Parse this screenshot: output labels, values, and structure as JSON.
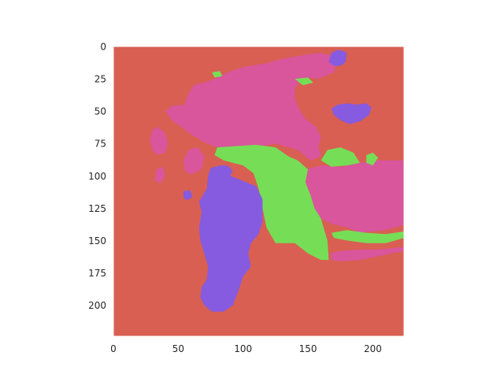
{
  "chart_data": {
    "type": "heatmap",
    "title": "",
    "xlabel": "",
    "ylabel": "",
    "xlim": [
      0,
      224
    ],
    "ylim": [
      224,
      0
    ],
    "grid": false,
    "xticks": [
      0,
      50,
      100,
      150,
      200
    ],
    "yticks": [
      0,
      25,
      50,
      75,
      100,
      125,
      150,
      175,
      200
    ],
    "classes": [
      {
        "id": 0,
        "color": "#d95f52"
      },
      {
        "id": 1,
        "color": "#d9559c"
      },
      {
        "id": 2,
        "color": "#76de56"
      },
      {
        "id": 3,
        "color": "#865be0"
      }
    ],
    "regions": [
      {
        "class": 1,
        "points": [
          [
            55,
            45
          ],
          [
            57,
            38
          ],
          [
            62,
            30
          ],
          [
            76,
            26
          ],
          [
            88,
            20
          ],
          [
            100,
            16
          ],
          [
            118,
            13
          ],
          [
            128,
            10
          ],
          [
            150,
            6
          ],
          [
            160,
            5
          ],
          [
            168,
            7
          ],
          [
            172,
            12
          ],
          [
            170,
            20
          ],
          [
            158,
            25
          ],
          [
            150,
            24
          ],
          [
            143,
            28
          ],
          [
            140,
            32
          ],
          [
            140,
            40
          ],
          [
            143,
            48
          ],
          [
            148,
            56
          ],
          [
            156,
            62
          ],
          [
            160,
            70
          ],
          [
            158,
            78
          ],
          [
            160,
            85
          ],
          [
            152,
            88
          ],
          [
            142,
            80
          ],
          [
            125,
            75
          ],
          [
            110,
            78
          ],
          [
            95,
            80
          ],
          [
            80,
            78
          ],
          [
            70,
            74
          ],
          [
            60,
            68
          ],
          [
            52,
            62
          ],
          [
            45,
            57
          ],
          [
            40,
            50
          ],
          [
            45,
            46
          ]
        ]
      },
      {
        "class": 1,
        "points": [
          [
            30,
            65
          ],
          [
            34,
            62
          ],
          [
            40,
            67
          ],
          [
            42,
            75
          ],
          [
            40,
            82
          ],
          [
            34,
            84
          ],
          [
            30,
            80
          ],
          [
            28,
            72
          ]
        ]
      },
      {
        "class": 1,
        "points": [
          [
            54,
            88
          ],
          [
            58,
            80
          ],
          [
            65,
            78
          ],
          [
            70,
            85
          ],
          [
            68,
            95
          ],
          [
            60,
            99
          ],
          [
            55,
            96
          ]
        ]
      },
      {
        "class": 1,
        "points": [
          [
            33,
            95
          ],
          [
            38,
            93
          ],
          [
            40,
            100
          ],
          [
            36,
            106
          ],
          [
            32,
            103
          ]
        ]
      },
      {
        "class": 1,
        "points": [
          [
            148,
            95
          ],
          [
            160,
            92
          ],
          [
            175,
            93
          ],
          [
            190,
            90
          ],
          [
            205,
            88
          ],
          [
            224,
            88
          ],
          [
            224,
            138
          ],
          [
            210,
            142
          ],
          [
            190,
            144
          ],
          [
            180,
            140
          ],
          [
            168,
            137
          ],
          [
            160,
            133
          ],
          [
            155,
            125
          ],
          [
            152,
            115
          ],
          [
            148,
            105
          ]
        ]
      },
      {
        "class": 1,
        "points": [
          [
            167,
            160
          ],
          [
            175,
            158
          ],
          [
            190,
            157
          ],
          [
            205,
            157
          ],
          [
            224,
            155
          ],
          [
            224,
            158
          ],
          [
            205,
            162
          ],
          [
            190,
            165
          ],
          [
            175,
            166
          ],
          [
            168,
            165
          ]
        ]
      },
      {
        "class": 2,
        "points": [
          [
            80,
            78
          ],
          [
            95,
            77
          ],
          [
            110,
            76
          ],
          [
            125,
            78
          ],
          [
            135,
            85
          ],
          [
            142,
            88
          ],
          [
            150,
            95
          ],
          [
            148,
            105
          ],
          [
            152,
            115
          ],
          [
            155,
            125
          ],
          [
            160,
            133
          ],
          [
            162,
            140
          ],
          [
            165,
            150
          ],
          [
            166,
            165
          ],
          [
            160,
            165
          ],
          [
            150,
            160
          ],
          [
            140,
            152
          ],
          [
            125,
            152
          ],
          [
            118,
            140
          ],
          [
            115,
            125
          ],
          [
            112,
            110
          ],
          [
            108,
            98
          ],
          [
            100,
            92
          ],
          [
            85,
            88
          ],
          [
            78,
            84
          ]
        ]
      },
      {
        "class": 2,
        "points": [
          [
            160,
            88
          ],
          [
            165,
            80
          ],
          [
            175,
            78
          ],
          [
            185,
            82
          ],
          [
            190,
            90
          ],
          [
            180,
            92
          ],
          [
            168,
            93
          ]
        ]
      },
      {
        "class": 2,
        "points": [
          [
            195,
            84
          ],
          [
            200,
            82
          ],
          [
            204,
            86
          ],
          [
            200,
            92
          ],
          [
            195,
            90
          ]
        ]
      },
      {
        "class": 2,
        "points": [
          [
            168,
            144
          ],
          [
            180,
            142
          ],
          [
            195,
            144
          ],
          [
            210,
            145
          ],
          [
            224,
            143
          ],
          [
            224,
            148
          ],
          [
            210,
            152
          ],
          [
            195,
            152
          ],
          [
            180,
            150
          ],
          [
            170,
            148
          ]
        ]
      },
      {
        "class": 2,
        "points": [
          [
            76,
            20
          ],
          [
            82,
            19
          ],
          [
            84,
            23
          ],
          [
            78,
            24
          ]
        ]
      },
      {
        "class": 2,
        "points": [
          [
            140,
            25
          ],
          [
            150,
            24
          ],
          [
            154,
            28
          ],
          [
            146,
            30
          ]
        ]
      },
      {
        "class": 3,
        "points": [
          [
            75,
            94
          ],
          [
            82,
            92
          ],
          [
            88,
            92
          ],
          [
            92,
            96
          ],
          [
            90,
            100
          ],
          [
            100,
            104
          ],
          [
            110,
            108
          ],
          [
            115,
            118
          ],
          [
            115,
            135
          ],
          [
            112,
            145
          ],
          [
            106,
            152
          ],
          [
            104,
            160
          ],
          [
            106,
            170
          ],
          [
            100,
            178
          ],
          [
            96,
            190
          ],
          [
            92,
            200
          ],
          [
            85,
            205
          ],
          [
            76,
            205
          ],
          [
            70,
            200
          ],
          [
            67,
            194
          ],
          [
            68,
            186
          ],
          [
            72,
            180
          ],
          [
            73,
            170
          ],
          [
            70,
            160
          ],
          [
            67,
            150
          ],
          [
            66,
            140
          ],
          [
            68,
            128
          ],
          [
            66,
            120
          ],
          [
            72,
            110
          ],
          [
            73,
            100
          ]
        ]
      },
      {
        "class": 3,
        "points": [
          [
            54,
            112
          ],
          [
            59,
            111
          ],
          [
            61,
            116
          ],
          [
            57,
            119
          ],
          [
            54,
            117
          ]
        ]
      },
      {
        "class": 3,
        "points": [
          [
            168,
            5
          ],
          [
            172,
            3
          ],
          [
            176,
            3
          ],
          [
            180,
            5
          ],
          [
            179,
            12
          ],
          [
            175,
            15
          ],
          [
            170,
            15
          ],
          [
            166,
            12
          ]
        ]
      },
      {
        "class": 3,
        "points": [
          [
            168,
            48
          ],
          [
            173,
            45
          ],
          [
            180,
            44
          ],
          [
            188,
            45
          ],
          [
            195,
            44
          ],
          [
            199,
            47
          ],
          [
            197,
            53
          ],
          [
            190,
            58
          ],
          [
            182,
            60
          ],
          [
            175,
            57
          ],
          [
            170,
            53
          ]
        ]
      }
    ]
  }
}
